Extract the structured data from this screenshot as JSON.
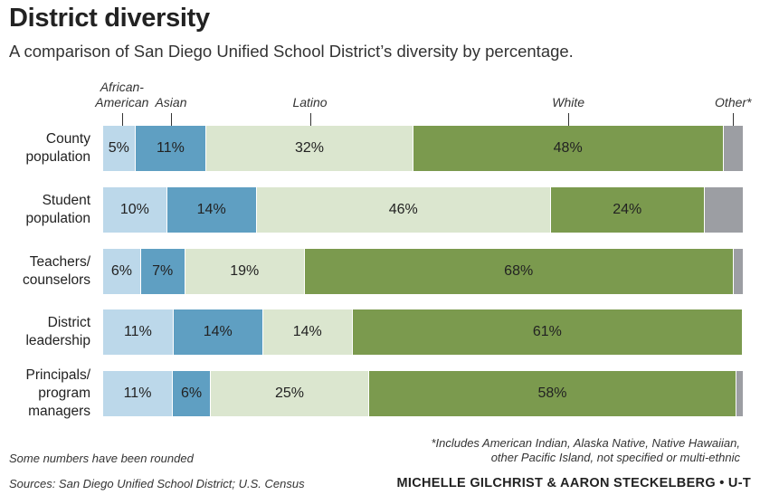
{
  "title": "District diversity",
  "subtitle": "A comparison of San Diego Unified School District’s diversity by percentage.",
  "chart_data": {
    "type": "bar",
    "orientation": "horizontal-stacked-100",
    "categories": [
      "County population",
      "Student population",
      "Teachers/ counselors",
      "District leadership",
      "Principals/ program managers"
    ],
    "category_lines": [
      [
        "County",
        "population"
      ],
      [
        "Student",
        "population"
      ],
      [
        "Teachers/",
        "counselors"
      ],
      [
        "District",
        "leadership"
      ],
      [
        "Principals/",
        "program",
        "managers"
      ]
    ],
    "series": [
      {
        "name": "African-American",
        "name_lines": [
          "African-",
          "American"
        ],
        "color": "#bcd8ea",
        "values": [
          5,
          10,
          6,
          11,
          11
        ],
        "labels": [
          "5%",
          "10%",
          "6%",
          "11%",
          "11%"
        ]
      },
      {
        "name": "Asian",
        "name_lines": [
          "Asian"
        ],
        "color": "#5f9fc2",
        "values": [
          11,
          14,
          7,
          14,
          6
        ],
        "labels": [
          "11%",
          "14%",
          "7%",
          "14%",
          "6%"
        ]
      },
      {
        "name": "Latino",
        "name_lines": [
          "Latino"
        ],
        "color": "#dbe6cf",
        "values": [
          32,
          46,
          19,
          14,
          25
        ],
        "labels": [
          "32%",
          "46%",
          "19%",
          "14%",
          "25%"
        ]
      },
      {
        "name": "White",
        "name_lines": [
          "White"
        ],
        "color": "#7b9a4e",
        "values": [
          48,
          24,
          68,
          61,
          58
        ],
        "labels": [
          "48%",
          "24%",
          "68%",
          "61%",
          "58%"
        ]
      },
      {
        "name": "Other*",
        "name_lines": [
          "Other*"
        ],
        "color": "#9c9ea3",
        "values": [
          3,
          6,
          1.5,
          0,
          1
        ],
        "labels": [
          "",
          "",
          "",
          "",
          ""
        ]
      }
    ],
    "xlim": [
      0,
      100
    ],
    "legend": "top"
  },
  "notes": {
    "rounded": "Some numbers have been rounded",
    "sources": "Sources: San Diego Unified School District; U.S. Census",
    "footnote_line1": "*Includes American Indian, Alaska Native, Native Hawaiian,",
    "footnote_line2": "other Pacific Island, not specified or multi-ethnic",
    "credit": "MICHELLE GILCHRIST & AARON STECKELBERG • U-T"
  }
}
